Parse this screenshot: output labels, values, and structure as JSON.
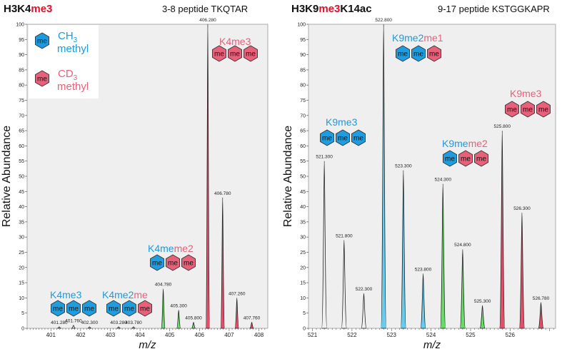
{
  "chart_data": [
    {
      "type": "area",
      "title_parts": [
        "H3K4",
        "me3"
      ],
      "subtitle": "3-8 peptide TKQTAR",
      "xlabel": "m/z",
      "ylabel": "Relative Abundance",
      "xlim": [
        400.2,
        408.3
      ],
      "ylim": [
        0,
        100
      ],
      "xticks": [
        401,
        402,
        403,
        404,
        405,
        406,
        407,
        408
      ],
      "yticks": [
        0,
        5,
        10,
        15,
        20,
        25,
        30,
        35,
        40,
        45,
        50,
        55,
        60,
        65,
        70,
        75,
        80,
        85,
        90,
        95,
        100
      ],
      "legend": [
        {
          "text": "CH",
          "sub": "3",
          "text2": "methyl",
          "hex": "me",
          "color": "#1a9be0"
        },
        {
          "text": "CD",
          "sub": "3",
          "text2": "methyl",
          "hex": "me",
          "color": "#e8607a"
        }
      ],
      "peaks": [
        {
          "x": 401.28,
          "y": 0.5,
          "label": "401.280",
          "fill": "none"
        },
        {
          "x": 401.76,
          "y": 1.0,
          "label": "401.760",
          "fill": "none"
        },
        {
          "x": 402.3,
          "y": 0.5,
          "label": "402.300",
          "fill": "none"
        },
        {
          "x": 403.28,
          "y": 0.5,
          "label": "403.280",
          "fill": "none"
        },
        {
          "x": 403.78,
          "y": 0.5,
          "label": "403.780",
          "fill": "none"
        },
        {
          "x": 404.78,
          "y": 13.0,
          "label": "404.780",
          "fill": "#66dd66"
        },
        {
          "x": 405.3,
          "y": 6.0,
          "label": "405.300",
          "fill": "#66dd66"
        },
        {
          "x": 405.8,
          "y": 2.0,
          "label": "405.800",
          "fill": "#66dd66"
        },
        {
          "x": 406.28,
          "y": 100.0,
          "label": "406.280",
          "fill": "#e0506b"
        },
        {
          "x": 406.78,
          "y": 43.0,
          "label": "406.780",
          "fill": "#e0506b"
        },
        {
          "x": 407.26,
          "y": 10.0,
          "label": "407.260",
          "fill": "#e0506b"
        },
        {
          "x": 407.76,
          "y": 2.0,
          "label": "407.760",
          "fill": "#e0506b"
        }
      ],
      "annotations": [
        {
          "parts": [
            {
              "t": "K4me3",
              "c": "blue"
            }
          ],
          "hexes": [
            "blue",
            "blue",
            "blue"
          ]
        },
        {
          "parts": [
            {
              "t": "K4me2",
              "c": "blue"
            },
            {
              "t": "me",
              "c": "red"
            }
          ],
          "hexes": [
            "blue",
            "blue",
            "red"
          ]
        },
        {
          "parts": [
            {
              "t": "K4me",
              "c": "blue"
            },
            {
              "t": "me2",
              "c": "red"
            }
          ],
          "hexes": [
            "blue",
            "red",
            "red"
          ]
        },
        {
          "parts": [
            {
              "t": "K4me3",
              "c": "red"
            }
          ],
          "hexes": [
            "red",
            "red",
            "red"
          ]
        }
      ]
    },
    {
      "type": "area",
      "title_parts": [
        "H3K9",
        "me3",
        "K14ac"
      ],
      "subtitle": "9-17 peptide KSTGGKAPR",
      "xlabel": "m/z",
      "ylabel": "Relative Abundance",
      "xlim": [
        520.9,
        527.15
      ],
      "ylim": [
        0,
        100
      ],
      "xticks": [
        521,
        522,
        523,
        524,
        525,
        526
      ],
      "yticks": [
        0,
        5,
        10,
        15,
        20,
        25,
        30,
        35,
        40,
        45,
        50,
        55,
        60,
        65,
        70,
        75,
        80,
        85,
        90,
        95,
        100
      ],
      "peaks": [
        {
          "x": 521.3,
          "y": 55.0,
          "label": "521.300",
          "fill": "none"
        },
        {
          "x": 521.8,
          "y": 29.0,
          "label": "521.800",
          "fill": "none"
        },
        {
          "x": 522.3,
          "y": 11.5,
          "label": "522.300",
          "fill": "none"
        },
        {
          "x": 522.8,
          "y": 100.0,
          "label": "522.800",
          "fill": "#66ccf0"
        },
        {
          "x": 523.3,
          "y": 52.0,
          "label": "523.300",
          "fill": "#66ccf0"
        },
        {
          "x": 523.8,
          "y": 18.0,
          "label": "523.800",
          "fill": "#66ccf0"
        },
        {
          "x": 524.3,
          "y": 47.5,
          "label": "524.300",
          "fill": "#66dd66"
        },
        {
          "x": 524.8,
          "y": 26.0,
          "label": "524.800",
          "fill": "#66dd66"
        },
        {
          "x": 525.3,
          "y": 7.5,
          "label": "525.300",
          "fill": "#66dd66"
        },
        {
          "x": 525.8,
          "y": 65.0,
          "label": "525.800",
          "fill": "#e0506b"
        },
        {
          "x": 526.3,
          "y": 38.0,
          "label": "526.300",
          "fill": "#e0506b"
        },
        {
          "x": 526.78,
          "y": 8.5,
          "label": "526.780",
          "fill": "#e0506b"
        }
      ],
      "annotations": [
        {
          "parts": [
            {
              "t": "K9me3",
              "c": "blue"
            }
          ],
          "hexes": [
            "blue",
            "blue",
            "blue"
          ]
        },
        {
          "parts": [
            {
              "t": "K9me2",
              "c": "blue"
            },
            {
              "t": "me1",
              "c": "red"
            }
          ],
          "hexes": [
            "blue",
            "blue",
            "red"
          ]
        },
        {
          "parts": [
            {
              "t": "K9me",
              "c": "blue"
            },
            {
              "t": "me2",
              "c": "red"
            }
          ],
          "hexes": [
            "blue",
            "red",
            "red"
          ]
        },
        {
          "parts": [
            {
              "t": "K9me3",
              "c": "red"
            }
          ],
          "hexes": [
            "red",
            "red",
            "red"
          ]
        }
      ]
    }
  ],
  "colors": {
    "blue_text": "#1a9be0",
    "red_text": "#e8607a",
    "hex_blue": "#1e9ee0",
    "hex_red": "#e8607a",
    "title_red": "#e0102a",
    "plot_bg": "#efefef"
  }
}
